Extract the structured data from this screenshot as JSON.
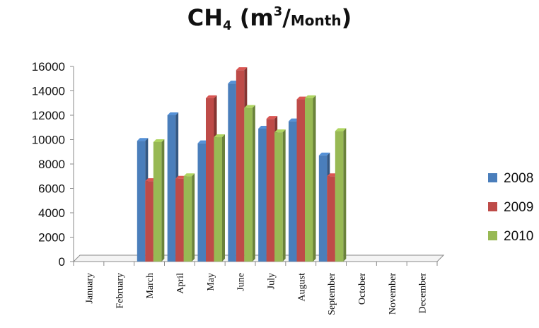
{
  "chart_data": {
    "type": "bar",
    "title": {
      "main": "CH",
      "sub": "4",
      "open": "(m",
      "sup": "3",
      "slash": "/",
      "unit": "Month",
      "close": ")"
    },
    "categories": [
      "January",
      "February",
      "March",
      "April",
      "May",
      "June",
      "July",
      "August",
      "September",
      "October",
      "November",
      "December"
    ],
    "series": [
      {
        "name": "2008",
        "color": "#4a7ebb",
        "values": [
          null,
          null,
          9900,
          12000,
          9700,
          14600,
          10900,
          11500,
          8700,
          null,
          null,
          null
        ]
      },
      {
        "name": "2009",
        "color": "#be4b48",
        "values": [
          null,
          null,
          6600,
          6800,
          13400,
          15700,
          11700,
          13300,
          7000,
          null,
          null,
          null
        ]
      },
      {
        "name": "2010",
        "color": "#98b954",
        "values": [
          null,
          null,
          9800,
          7000,
          10200,
          12600,
          10600,
          13400,
          10700,
          null,
          null,
          null
        ]
      }
    ],
    "yticks": [
      "0",
      "2000",
      "4000",
      "6000",
      "8000",
      "10000",
      "12000",
      "14000",
      "16000"
    ],
    "ylim": [
      0,
      16000
    ],
    "legend_position": "right",
    "style": "3d-clustered-column"
  }
}
